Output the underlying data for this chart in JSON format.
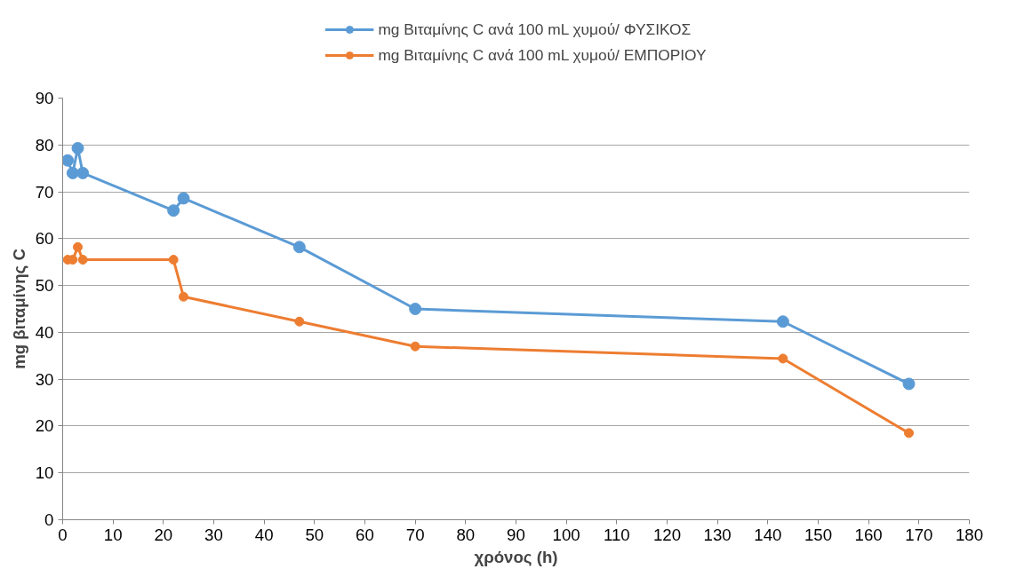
{
  "chart_data": {
    "type": "line",
    "xlabel": "χρόνος (h)",
    "ylabel": "mg βιταμίνης C",
    "x": [
      1,
      2,
      3,
      4,
      22,
      24,
      47,
      70,
      143,
      168
    ],
    "series": [
      {
        "name": "mg Βιταμίνης C ανά 100 mL χυμού/ ΦΥΣΙΚΟΣ",
        "color": "#5b9bd5",
        "values": [
          76.7,
          74,
          79.3,
          74,
          66,
          68.6,
          58.2,
          45,
          42.3,
          29
        ]
      },
      {
        "name": "mg Βιταμίνης C ανά 100 mL χυμού/ ΕΜΠΟΡΙΟΥ",
        "color": "#ed7d31",
        "values": [
          55.5,
          55.5,
          58.2,
          55.5,
          55.5,
          47.6,
          42.3,
          37,
          34.4,
          18.5
        ]
      }
    ],
    "xlim": [
      0,
      180
    ],
    "xticks": [
      0,
      10,
      20,
      30,
      40,
      50,
      60,
      70,
      80,
      90,
      100,
      110,
      120,
      130,
      140,
      150,
      160,
      170,
      180
    ],
    "ylim": [
      0,
      90
    ],
    "yticks": [
      0,
      10,
      20,
      30,
      40,
      50,
      60,
      70,
      80,
      90
    ],
    "grid": "y",
    "legend": "top",
    "marker": "circle",
    "line_style": "solid"
  }
}
